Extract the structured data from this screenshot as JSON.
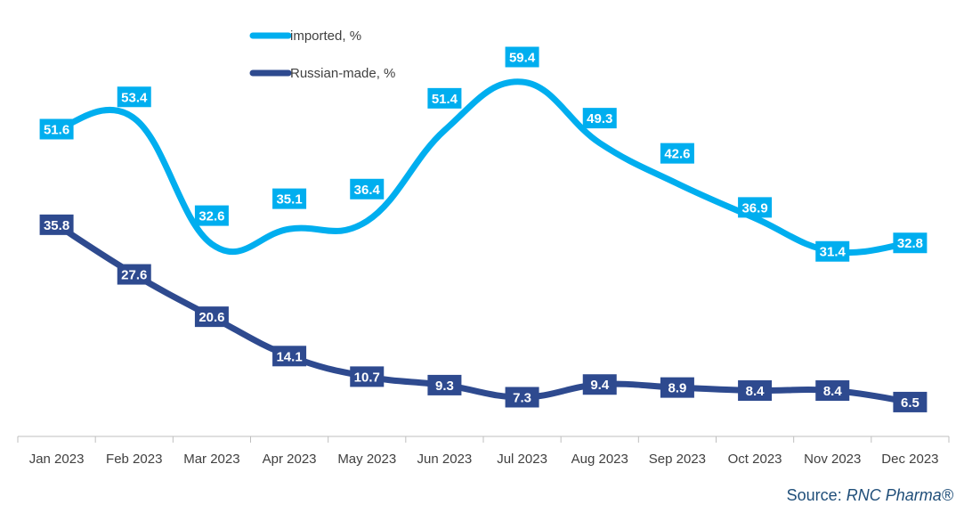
{
  "chart_data": {
    "type": "line",
    "categories": [
      "Jan 2023",
      "Feb 2023",
      "Mar 2023",
      "Apr 2023",
      "May 2023",
      "Jun 2023",
      "Jul 2023",
      "Aug 2023",
      "Sep 2023",
      "Oct 2023",
      "Nov 2023",
      "Dec 2023"
    ],
    "series": [
      {
        "name": "imported, %",
        "color": "#00aeef",
        "values": [
          51.6,
          53.4,
          32.6,
          35.1,
          36.4,
          51.4,
          59.4,
          49.3,
          42.6,
          36.9,
          31.4,
          32.8
        ]
      },
      {
        "name": "Russian-made, %",
        "color": "#2e4a8f",
        "values": [
          35.8,
          27.6,
          20.6,
          14.1,
          10.7,
          9.3,
          7.3,
          9.4,
          8.9,
          8.4,
          8.4,
          6.5
        ]
      }
    ],
    "smooth": true,
    "data_labels": true,
    "legend_position": "top-left",
    "grid": false,
    "ylim": [
      0,
      65
    ]
  },
  "source": {
    "prefix": "Source: ",
    "name": "RNC Pharma®"
  }
}
